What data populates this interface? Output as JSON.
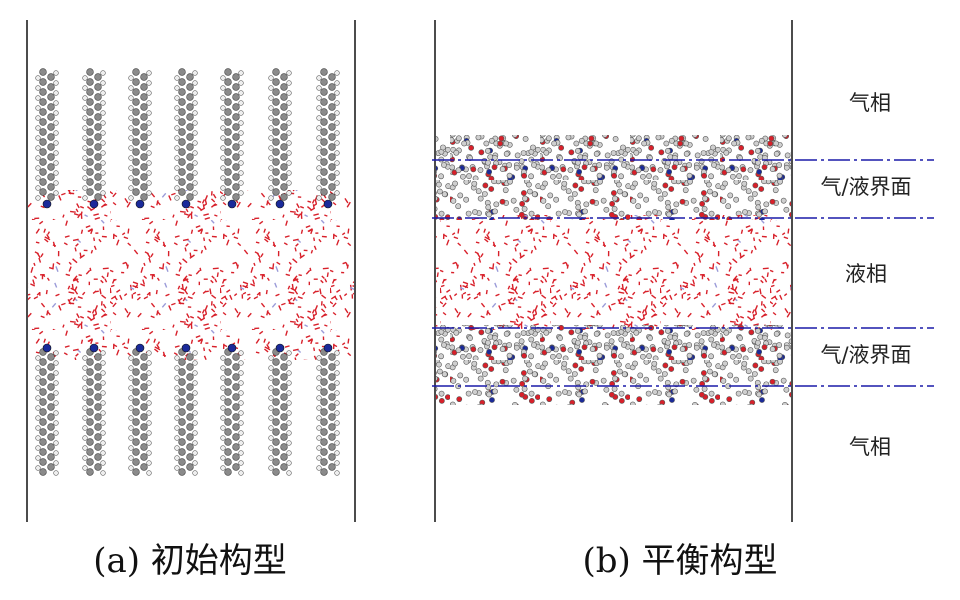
{
  "panels": [
    {
      "caption": "(a) 初始构型"
    },
    {
      "caption": "(b) 平衡构型",
      "phase_labels": [
        "气相",
        "气/液界面",
        "液相",
        "气/液界面",
        "气相"
      ]
    }
  ]
}
